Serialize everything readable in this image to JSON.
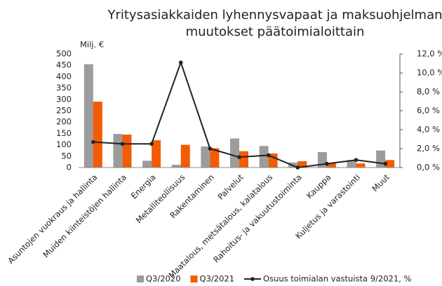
{
  "chart_data": {
    "type": "bar_line",
    "title": [
      "Yritysasiakkaiden lyhennysvapaat ja maksuohjelman",
      "muutokset päätoimialoittain"
    ],
    "y_label": "Milj. €",
    "categories": [
      "Asuntojen vuokraus ja hallinta",
      "Muiden kiinteistöjen hallinta",
      "Energia",
      "Metalliteollisuus",
      "Rakentaminen",
      "Palvelut",
      "Maatalous, metsätalous, kalatalous",
      "Rahoitus- ja vakuutustoiminta",
      "Kauppa",
      "Kuljetus ja varastointi",
      "Muut"
    ],
    "series": [
      {
        "name": "Q3/2020",
        "color": "#9c9c9c",
        "kind": "bar",
        "values": [
          455,
          148,
          30,
          12,
          93,
          128,
          95,
          22,
          68,
          33,
          75
        ]
      },
      {
        "name": "Q3/2021",
        "color": "#f25c05",
        "kind": "bar",
        "values": [
          290,
          145,
          120,
          100,
          85,
          72,
          62,
          28,
          20,
          18,
          33
        ]
      },
      {
        "name": "Osuus toimialan vastuista 9/2021, %",
        "color": "#222222",
        "kind": "line",
        "axis": "y2",
        "values": [
          2.7,
          2.5,
          2.5,
          11.1,
          2.0,
          1.1,
          1.3,
          0.0,
          0.4,
          0.8,
          0.4
        ]
      }
    ],
    "ylim": [
      0,
      500
    ],
    "yticks": [
      0,
      50,
      100,
      150,
      200,
      250,
      300,
      350,
      400,
      450,
      500
    ],
    "y2lim": [
      0,
      12
    ],
    "y2ticks": [
      {
        "value": 0,
        "label": "0,0 %"
      },
      {
        "value": 2,
        "label": "2,0 %"
      },
      {
        "value": 4,
        "label": "4,0 %"
      },
      {
        "value": 6,
        "label": "6,0 %"
      },
      {
        "value": 8,
        "label": "8,0 %"
      },
      {
        "value": 10,
        "label": "10,0 %"
      },
      {
        "value": 12,
        "label": "12,0 %"
      }
    ],
    "grid": false,
    "legend": "bottom"
  }
}
